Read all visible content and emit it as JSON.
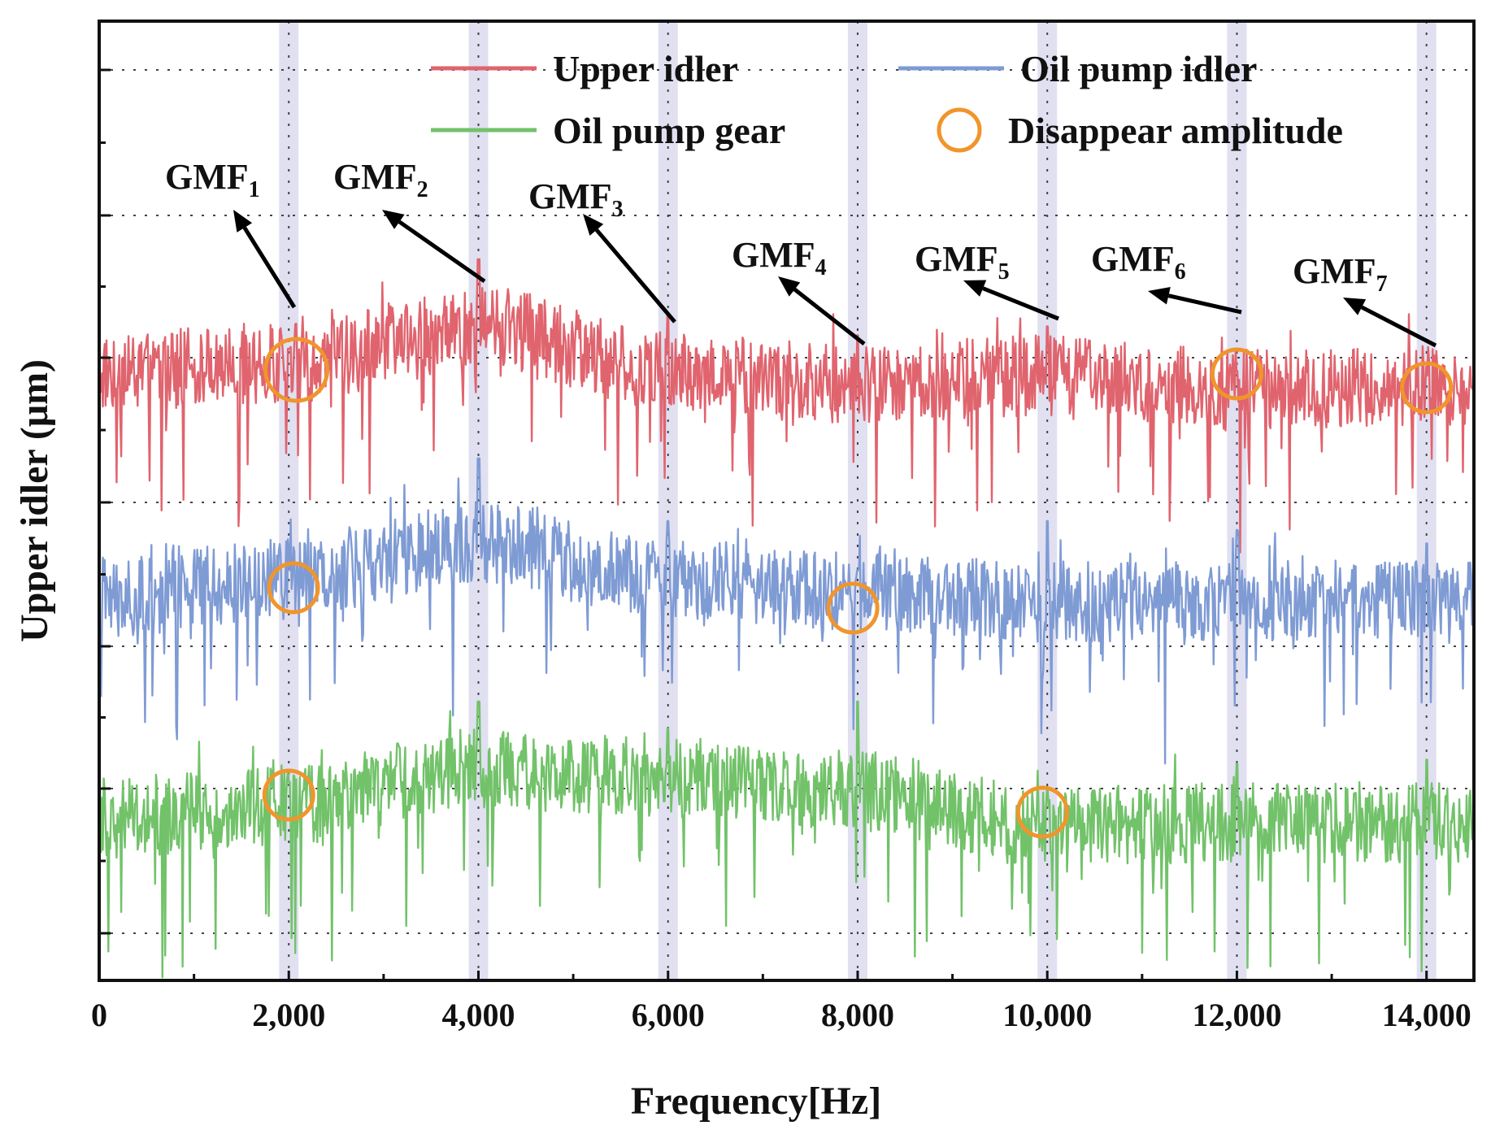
{
  "chart_data": {
    "type": "line",
    "xlabel": "Frequency[Hz]",
    "ylabel": "Upper idler (μm)",
    "xlim": [
      0,
      14500
    ],
    "x_tick_values": [
      0,
      2000,
      4000,
      6000,
      8000,
      10000,
      12000,
      14000
    ],
    "x_tick_labels": [
      "0",
      "2,000",
      "4,000",
      "6,000",
      "8,000",
      "10,000",
      "12,000",
      "14,000"
    ],
    "y_tick_labels_shown": false,
    "grid": "dotted, horizontal and at GMF frequencies",
    "legend_position": "top",
    "series": [
      {
        "name": "Upper idler",
        "color": "#e0646e",
        "baseline": 0.0,
        "envelope_x": [
          0,
          2000,
          4000,
          6000,
          8000,
          10000,
          12000,
          14500
        ],
        "envelope_y": [
          0.35,
          0.45,
          0.85,
          0.35,
          0.2,
          0.3,
          0.15,
          0.2
        ],
        "peaks": [
          {
            "x": 2000,
            "y": 0.6
          },
          {
            "x": 4000,
            "y": 1.6
          },
          {
            "x": 6000,
            "y": 1.0
          },
          {
            "x": 8000,
            "y": 0.75
          },
          {
            "x": 10000,
            "y": 0.85
          },
          {
            "x": 12000,
            "y": 0.35
          },
          {
            "x": 14000,
            "y": 0.3
          }
        ]
      },
      {
        "name": "Oil pump idler",
        "color": "#7f9bd4",
        "baseline": 0.0,
        "envelope_x": [
          0,
          2000,
          4000,
          6000,
          8000,
          10000,
          12000,
          14500
        ],
        "envelope_y": [
          0.25,
          0.45,
          0.85,
          0.45,
          0.3,
          0.2,
          0.2,
          0.25
        ],
        "peaks": [
          {
            "x": 2000,
            "y": 0.55
          },
          {
            "x": 4000,
            "y": 1.8
          },
          {
            "x": 6000,
            "y": 1.1
          },
          {
            "x": 8000,
            "y": 0.55
          },
          {
            "x": 10000,
            "y": 1.1
          },
          {
            "x": 12000,
            "y": 1.0
          },
          {
            "x": 14000,
            "y": 0.85
          }
        ]
      },
      {
        "name": "Oil pump gear",
        "color": "#72c26a",
        "baseline": 0.0,
        "envelope_x": [
          0,
          2000,
          4000,
          6000,
          8000,
          10000,
          12000,
          14500
        ],
        "envelope_y": [
          0.2,
          0.35,
          0.75,
          0.65,
          0.5,
          0.1,
          0.15,
          0.15
        ],
        "peaks": [
          {
            "x": 2000,
            "y": 0.6
          },
          {
            "x": 4000,
            "y": 1.5
          },
          {
            "x": 6000,
            "y": 1.2
          },
          {
            "x": 8000,
            "y": 1.5
          },
          {
            "x": 10000,
            "y": 0.5
          },
          {
            "x": 12000,
            "y": 0.8
          },
          {
            "x": 14000,
            "y": 0.85
          }
        ]
      }
    ],
    "gmf_markers": [
      {
        "label": "GMF",
        "sub": "1",
        "x": 2000
      },
      {
        "label": "GMF",
        "sub": "2",
        "x": 4000
      },
      {
        "label": "GMF",
        "sub": "3",
        "x": 6000
      },
      {
        "label": "GMF",
        "sub": "4",
        "x": 8000
      },
      {
        "label": "GMF",
        "sub": "5",
        "x": 10000
      },
      {
        "label": "GMF",
        "sub": "6",
        "x": 12000
      },
      {
        "label": "GMF",
        "sub": "7",
        "x": 14000
      }
    ],
    "disappear_amplitude": {
      "legend_label": "Disappear amplitude",
      "color": "#f0952c",
      "marks": [
        {
          "series": "Upper idler",
          "x": 2080
        },
        {
          "series": "Upper idler",
          "x": 12000
        },
        {
          "series": "Upper idler",
          "x": 14000
        },
        {
          "series": "Oil pump idler",
          "x": 2050
        },
        {
          "series": "Oil pump idler",
          "x": 7950
        },
        {
          "series": "Oil pump gear",
          "x": 2000
        },
        {
          "series": "Oil pump gear",
          "x": 9950
        }
      ]
    },
    "highlight_band_color": "#d6d6ec"
  }
}
